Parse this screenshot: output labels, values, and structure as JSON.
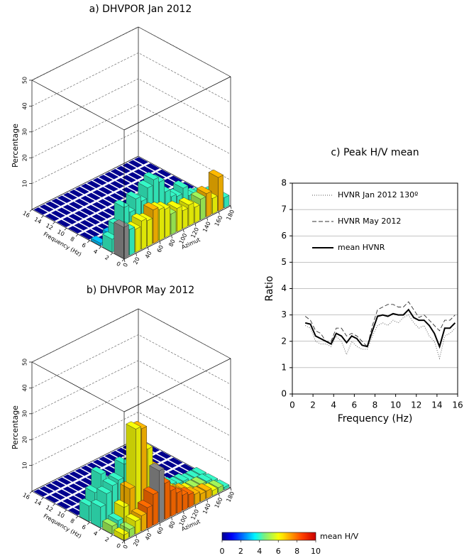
{
  "chart_data": [
    {
      "type": "bar3d",
      "title": "a) DHVPOR Jan 2012",
      "zlabel": "Percentage",
      "xlabel": "Frequency (Hz)",
      "ylabel": "Azimut",
      "x": [
        1,
        3,
        5,
        7,
        9,
        11,
        13,
        15
      ],
      "y": [
        5,
        15,
        25,
        35,
        45,
        55,
        65,
        75,
        85,
        95,
        105,
        115,
        125,
        135,
        145,
        155,
        165,
        175
      ],
      "values": [
        [
          12,
          10,
          9,
          11,
          10,
          13,
          12,
          11,
          8,
          9,
          7,
          8,
          6,
          8,
          9,
          6,
          13,
          4
        ],
        [
          5,
          9,
          15,
          12,
          16,
          14,
          18,
          20,
          18,
          13,
          10,
          9,
          11,
          7,
          6,
          5,
          4,
          3
        ],
        [
          1,
          0,
          2,
          0,
          1,
          0,
          0,
          1,
          0,
          0,
          0,
          0,
          0,
          0,
          0,
          0,
          0,
          0
        ],
        [
          0,
          0,
          0,
          0,
          0,
          0,
          0,
          0,
          0,
          0,
          0,
          0,
          0,
          0,
          0,
          0,
          0,
          0
        ],
        [
          0,
          0,
          0,
          0,
          0,
          0,
          0,
          0,
          0,
          0,
          0,
          0,
          0,
          0,
          0,
          0,
          0,
          0
        ],
        [
          0,
          0,
          0,
          0,
          0,
          0,
          0,
          0,
          0,
          0,
          0,
          0,
          0,
          0,
          0,
          0,
          0,
          0
        ],
        [
          0,
          0,
          0,
          0,
          0,
          0,
          0,
          0,
          0,
          0,
          0,
          0,
          0,
          0,
          0,
          0,
          0,
          0
        ],
        [
          0,
          0,
          0,
          0,
          0,
          0,
          0,
          0,
          0,
          0,
          0,
          0,
          0,
          0,
          0,
          0,
          0,
          0
        ]
      ],
      "hv": [
        [
          null,
          4,
          6,
          6,
          6,
          7,
          6,
          6,
          5,
          6,
          6,
          6,
          6,
          5,
          7,
          6,
          7,
          4
        ],
        [
          4,
          4,
          4,
          4,
          4,
          4,
          4,
          4,
          4,
          4,
          4,
          4,
          4,
          4,
          4,
          4,
          5,
          4
        ],
        [
          3,
          0,
          3,
          0,
          3,
          0,
          0,
          3,
          0,
          0,
          0,
          0,
          0,
          0,
          0,
          0,
          0,
          0
        ],
        [
          0,
          0,
          0,
          0,
          0,
          0,
          0,
          0,
          0,
          0,
          0,
          0,
          0,
          0,
          0,
          0,
          0,
          0
        ],
        [
          0,
          0,
          0,
          0,
          0,
          0,
          0,
          0,
          0,
          0,
          0,
          0,
          0,
          0,
          0,
          0,
          0,
          0
        ],
        [
          0,
          0,
          0,
          0,
          0,
          0,
          0,
          0,
          0,
          0,
          0,
          0,
          0,
          0,
          0,
          0,
          0,
          0
        ],
        [
          0,
          0,
          0,
          0,
          0,
          0,
          0,
          0,
          0,
          0,
          0,
          0,
          0,
          0,
          0,
          0,
          0,
          0
        ],
        [
          0,
          0,
          0,
          0,
          0,
          0,
          0,
          0,
          0,
          0,
          0,
          0,
          0,
          0,
          0,
          0,
          0,
          0
        ]
      ],
      "xlim": [
        0,
        16
      ],
      "xticks": [
        0,
        2,
        4,
        6,
        8,
        10,
        12,
        14,
        16
      ],
      "ylim": [
        0,
        180
      ],
      "yticks": [
        0,
        20,
        40,
        60,
        80,
        100,
        120,
        140,
        160,
        180
      ],
      "zlim": [
        0,
        50
      ],
      "zticks": [
        10,
        20,
        30,
        40,
        50
      ],
      "colormap": "jet",
      "clim": [
        0,
        10
      ]
    },
    {
      "type": "bar3d",
      "title": "b) DHVPOR May 2012",
      "zlabel": "Percentage",
      "xlabel": "Frequency (Hz)",
      "ylabel": "Azimut",
      "x": [
        1,
        3,
        5,
        7,
        9,
        11,
        13,
        15
      ],
      "y": [
        5,
        15,
        25,
        35,
        45,
        55,
        65,
        75,
        85,
        95,
        105,
        115,
        125,
        135,
        145,
        155,
        165,
        175
      ],
      "values": [
        [
          2,
          3,
          5,
          6,
          8,
          12,
          20,
          14,
          10,
          8,
          6,
          5,
          4,
          3,
          3,
          2,
          2,
          1
        ],
        [
          3,
          4,
          8,
          14,
          36,
          35,
          26,
          18,
          12,
          8,
          6,
          4,
          3,
          2,
          2,
          2,
          2,
          1
        ],
        [
          8,
          12,
          14,
          15,
          20,
          18,
          22,
          14,
          10,
          8,
          6,
          4,
          3,
          2,
          2,
          1,
          1,
          1
        ],
        [
          6,
          10,
          16,
          12,
          10,
          8,
          6,
          4,
          2,
          0,
          0,
          0,
          0,
          0,
          0,
          0,
          0,
          0
        ],
        [
          0,
          0,
          0,
          0,
          0,
          0,
          0,
          0,
          0,
          0,
          0,
          0,
          0,
          0,
          0,
          0,
          0,
          0
        ],
        [
          0,
          0,
          0,
          0,
          0,
          0,
          0,
          0,
          0,
          0,
          0,
          0,
          0,
          0,
          0,
          0,
          0,
          0
        ],
        [
          0,
          0,
          0,
          0,
          0,
          0,
          0,
          0,
          0,
          0,
          0,
          0,
          0,
          0,
          0,
          0,
          0,
          0
        ],
        [
          0,
          0,
          0,
          0,
          0,
          0,
          0,
          0,
          0,
          0,
          0,
          0,
          0,
          0,
          0,
          0,
          0,
          0
        ]
      ],
      "hv": [
        [
          6,
          5,
          6,
          7,
          8,
          8,
          null,
          8,
          8,
          8,
          8,
          8,
          7,
          7,
          7,
          6,
          5,
          4
        ],
        [
          5,
          4,
          6,
          7,
          6,
          7,
          6,
          7,
          7,
          7,
          6,
          7,
          7,
          6,
          5,
          5,
          4,
          4
        ],
        [
          4,
          4,
          4,
          4,
          4,
          4,
          4,
          4,
          4,
          4,
          4,
          4,
          4,
          4,
          4,
          4,
          4,
          4
        ],
        [
          4,
          4,
          4,
          4,
          4,
          4,
          4,
          4,
          4,
          0,
          0,
          0,
          0,
          0,
          0,
          0,
          0,
          0
        ],
        [
          0,
          0,
          0,
          0,
          0,
          0,
          0,
          0,
          0,
          0,
          0,
          0,
          0,
          0,
          0,
          0,
          0,
          0
        ],
        [
          0,
          0,
          0,
          0,
          0,
          0,
          0,
          0,
          0,
          0,
          0,
          0,
          0,
          0,
          0,
          0,
          0,
          0
        ],
        [
          0,
          0,
          0,
          0,
          0,
          0,
          0,
          0,
          0,
          0,
          0,
          0,
          0,
          0,
          0,
          0,
          0,
          0
        ],
        [
          0,
          0,
          0,
          0,
          0,
          0,
          0,
          0,
          0,
          0,
          0,
          0,
          0,
          0,
          0,
          0,
          0,
          0
        ]
      ],
      "xlim": [
        0,
        16
      ],
      "xticks": [
        0,
        2,
        4,
        6,
        8,
        10,
        12,
        14,
        16
      ],
      "ylim": [
        0,
        180
      ],
      "yticks": [
        0,
        20,
        40,
        60,
        80,
        100,
        120,
        140,
        160,
        180
      ],
      "zlim": [
        0,
        50
      ],
      "zticks": [
        10,
        20,
        30,
        40,
        50
      ],
      "colormap": "jet",
      "clim": [
        0,
        10
      ],
      "colorbar": {
        "label": "mean H/V",
        "ticks": [
          0,
          2,
          4,
          6,
          8,
          10
        ]
      }
    },
    {
      "type": "line",
      "title": "c) Peak H/V mean",
      "xlabel": "Frequency (Hz)",
      "ylabel": "Ratio",
      "x": [
        1.25,
        1.75,
        2.25,
        2.75,
        3.25,
        3.75,
        4.25,
        4.75,
        5.25,
        5.75,
        6.25,
        6.75,
        7.25,
        7.75,
        8.25,
        8.75,
        9.25,
        9.75,
        10.25,
        10.75,
        11.25,
        11.75,
        12.25,
        12.75,
        13.25,
        13.75,
        14.25,
        14.75,
        15.25,
        15.75
      ],
      "series": [
        {
          "name": "HVNR Jan 2012  130º",
          "color": "#555555",
          "linestyle": "dotted",
          "linewidth": 0.9,
          "values": [
            2.6,
            2.5,
            2.0,
            1.9,
            1.9,
            1.8,
            2.2,
            2.0,
            1.5,
            2.0,
            1.8,
            1.7,
            1.7,
            2.2,
            2.6,
            2.7,
            2.6,
            2.8,
            2.7,
            2.9,
            3.0,
            2.7,
            2.5,
            2.6,
            2.2,
            2.0,
            1.35,
            2.2,
            2.3,
            2.5
          ]
        },
        {
          "name": "HVNR May 2012",
          "color": "#333333",
          "linestyle": "dashed",
          "linewidth": 0.9,
          "values": [
            2.95,
            2.8,
            2.4,
            2.3,
            2.0,
            2.0,
            2.5,
            2.5,
            2.2,
            2.3,
            2.2,
            2.0,
            1.8,
            2.6,
            3.2,
            3.3,
            3.4,
            3.4,
            3.3,
            3.3,
            3.5,
            3.2,
            2.9,
            3.0,
            2.8,
            2.6,
            2.4,
            2.8,
            2.8,
            3.0
          ]
        },
        {
          "name": "mean HVNR",
          "color": "#000000",
          "linestyle": "solid",
          "linewidth": 2,
          "values": [
            2.7,
            2.65,
            2.2,
            2.1,
            2.0,
            1.9,
            2.3,
            2.2,
            1.95,
            2.2,
            2.1,
            1.85,
            1.8,
            2.4,
            2.95,
            3.0,
            2.95,
            3.05,
            3.0,
            3.0,
            3.2,
            2.9,
            2.8,
            2.8,
            2.6,
            2.3,
            1.8,
            2.5,
            2.5,
            2.7
          ]
        }
      ],
      "xlim": [
        0,
        16
      ],
      "xticks": [
        0,
        2,
        4,
        6,
        8,
        10,
        12,
        14,
        16
      ],
      "ylim": [
        0,
        8
      ],
      "yticks": [
        0,
        1,
        2,
        3,
        4,
        5,
        6,
        7,
        8
      ],
      "grid": true,
      "legend": "upper left"
    }
  ]
}
